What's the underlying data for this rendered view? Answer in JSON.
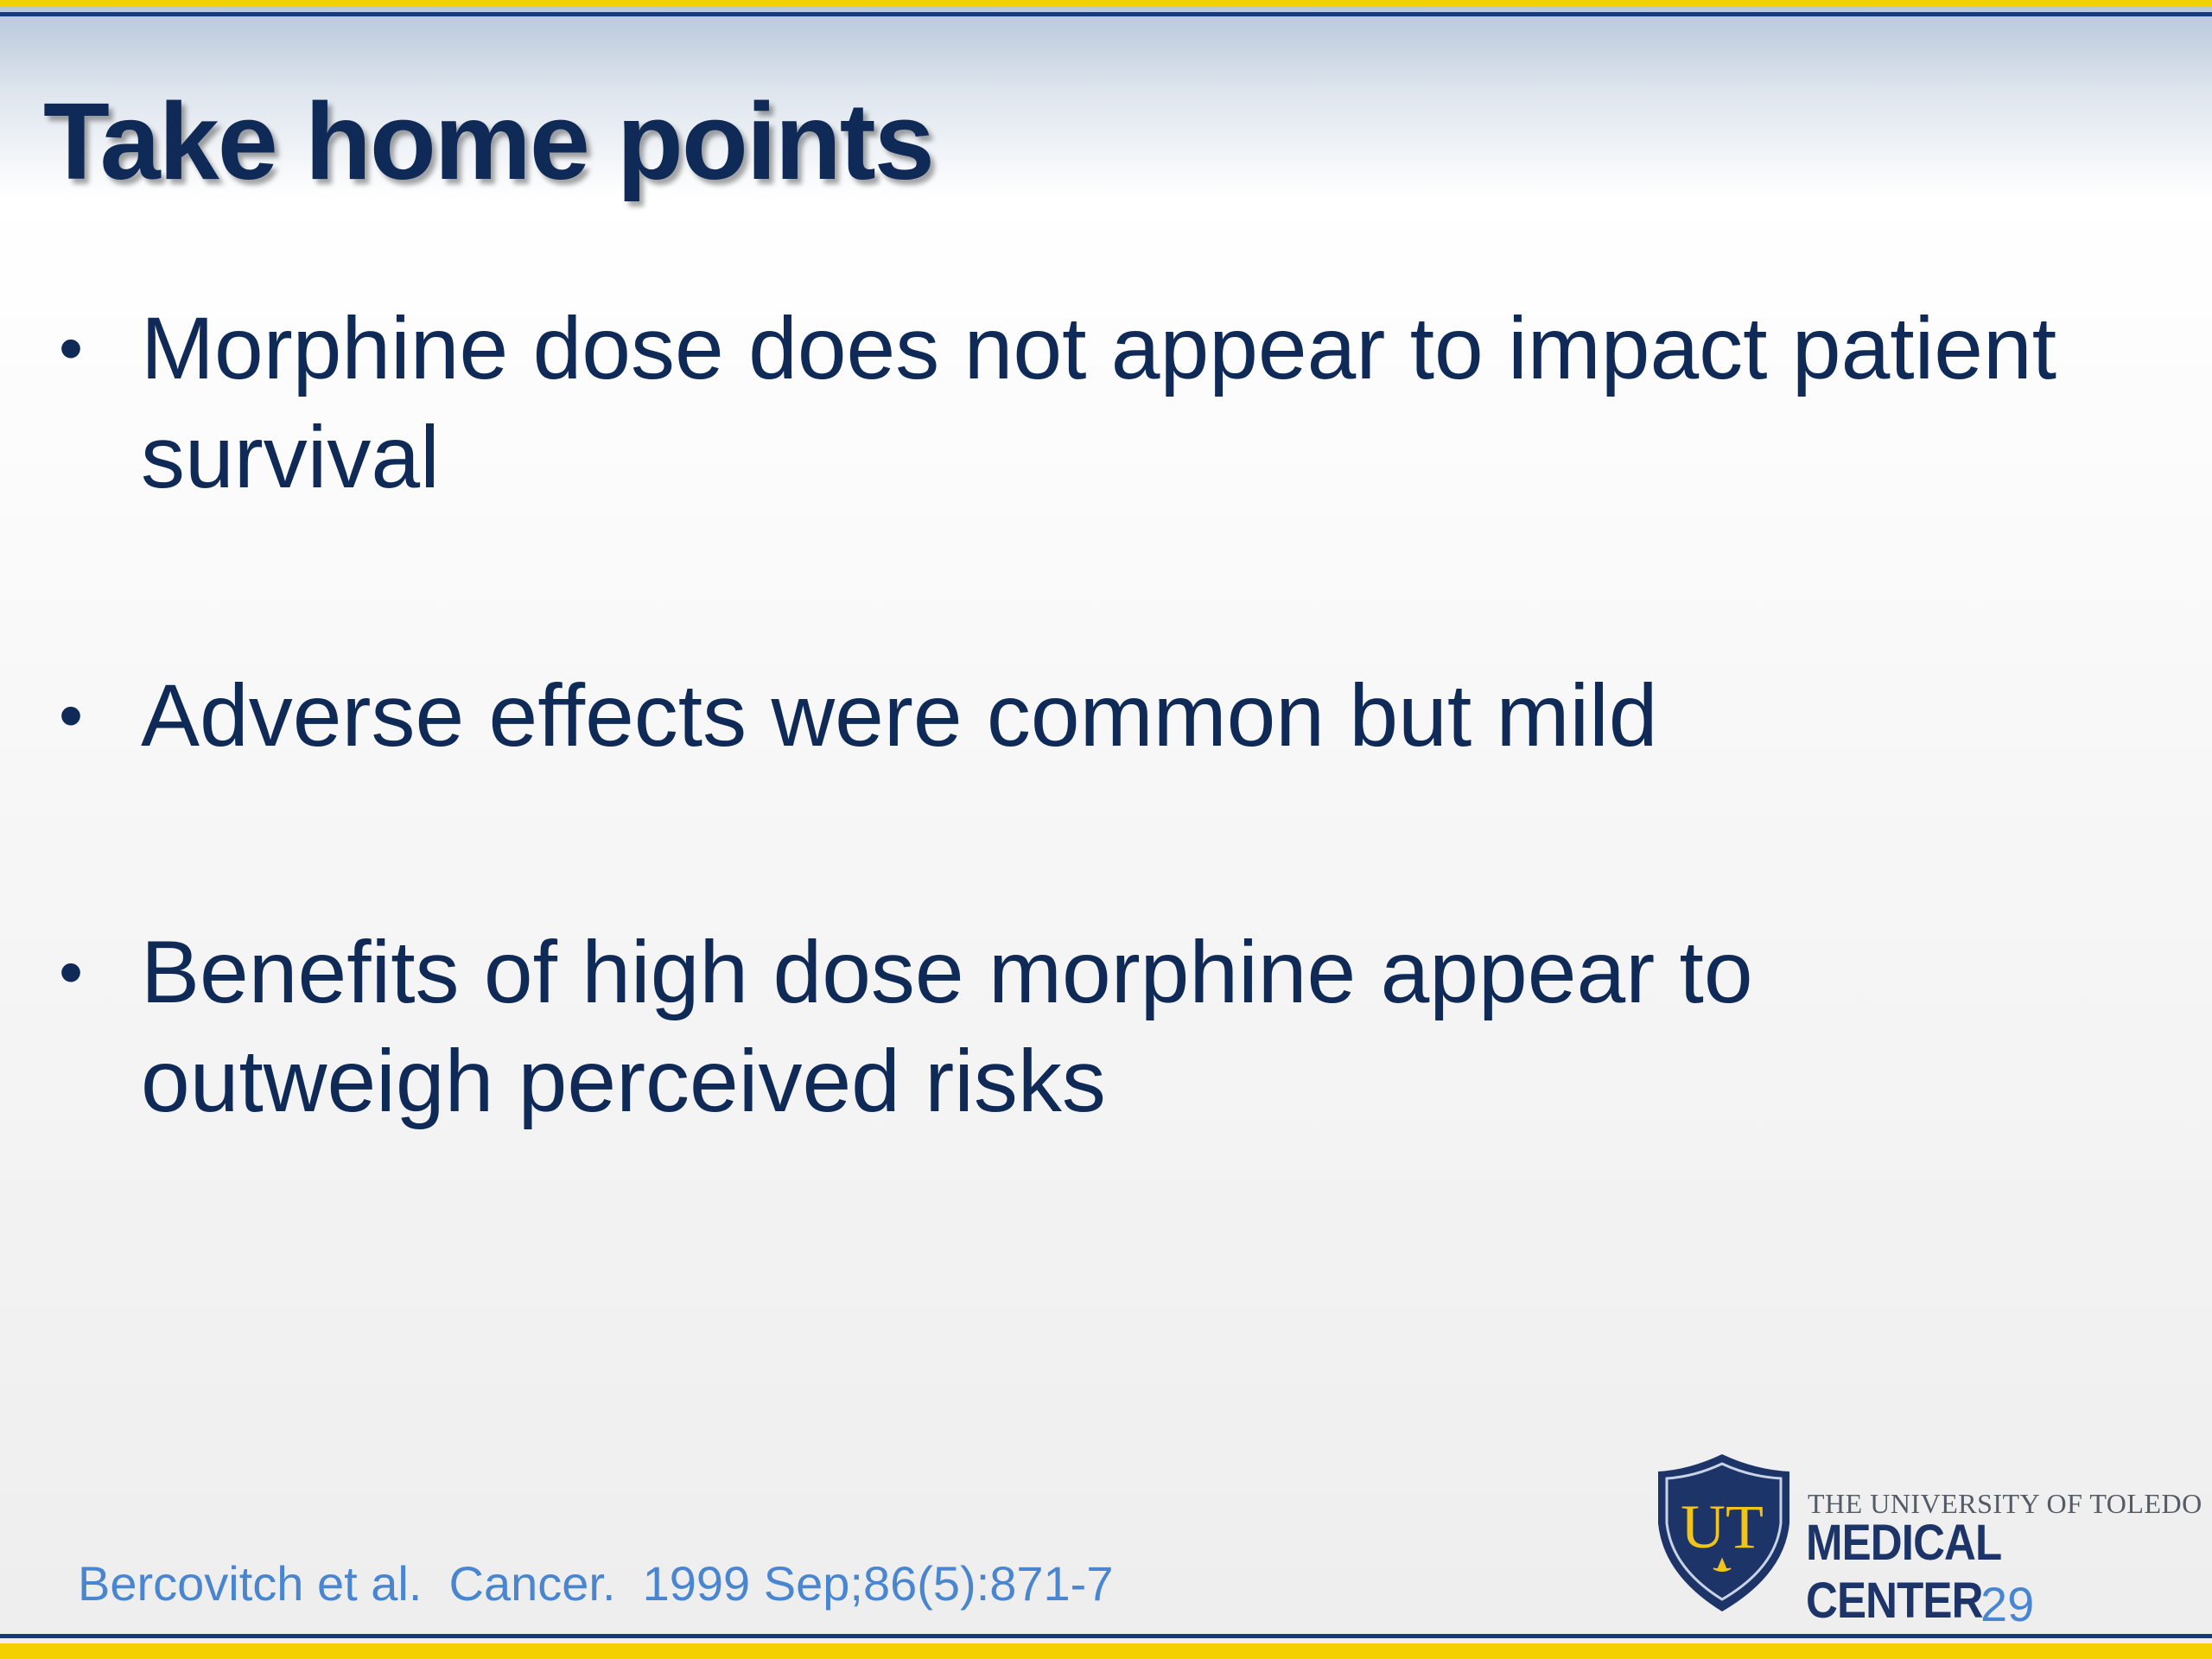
{
  "slide": {
    "title": "Take home points",
    "bullets": [
      {
        "symbol": "•",
        "text": "Morphine dose does not appear to impact patient survival"
      },
      {
        "symbol": "•",
        "text": "Adverse effects were common but mild"
      },
      {
        "symbol": "•",
        "text": "Benefits of high dose morphine appear to outweigh perceived risks"
      }
    ],
    "citation": "Bercovitch et al.  Cancer.  1999 Sep;86(5):871-7",
    "page_number": "29"
  },
  "logo": {
    "monogram": "UT",
    "line1": "THE UNIVERSITY OF TOLEDO",
    "line2": "MEDICAL CENTER"
  },
  "colors": {
    "navy": "#0f2a57",
    "gold": "#f5d000",
    "link_blue": "#4a86d0",
    "shield": "#1d3468"
  }
}
